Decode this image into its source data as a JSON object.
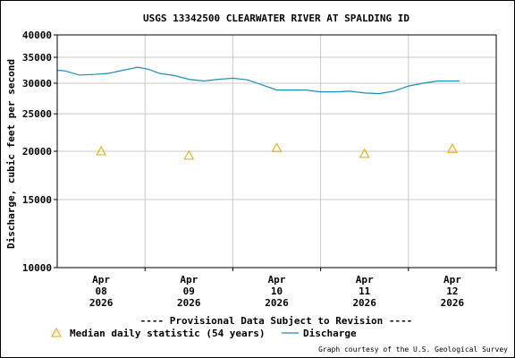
{
  "chart_data": {
    "type": "line",
    "title": "USGS 13342500 CLEARWATER RIVER AT SPALDING ID",
    "ylabel": "Discharge, cubic feet per second",
    "xlabel": "",
    "yscale": "log",
    "ylim": [
      10000,
      40000
    ],
    "y_ticks": [
      10000,
      15000,
      20000,
      25000,
      30000,
      35000,
      40000
    ],
    "y_tick_labels": [
      "10000",
      "15000",
      "20000",
      "25000",
      "30000",
      "35000",
      "40000"
    ],
    "xlim": [
      "2026-04-07 12:00",
      "2026-04-12 12:00"
    ],
    "x_ticks": [
      "2026-04-08",
      "2026-04-09",
      "2026-04-10",
      "2026-04-11",
      "2026-04-12"
    ],
    "x_tick_labels": [
      [
        "Apr",
        "08",
        "2026"
      ],
      [
        "Apr",
        "09",
        "2026"
      ],
      [
        "Apr",
        "10",
        "2026"
      ],
      [
        "Apr",
        "11",
        "2026"
      ],
      [
        "Apr",
        "12",
        "2026"
      ]
    ],
    "grid": true,
    "series": [
      {
        "name": "Discharge",
        "color": "#1a8fb4",
        "marker": "line",
        "x": [
          "2026-04-07 12:00",
          "2026-04-07 14:00",
          "2026-04-07 18:00",
          "2026-04-07 22:00",
          "2026-04-08 02:00",
          "2026-04-08 06:00",
          "2026-04-08 10:00",
          "2026-04-08 13:00",
          "2026-04-08 16:00",
          "2026-04-08 20:00",
          "2026-04-09 00:00",
          "2026-04-09 04:00",
          "2026-04-09 08:00",
          "2026-04-09 12:00",
          "2026-04-09 16:00",
          "2026-04-09 20:00",
          "2026-04-10 00:00",
          "2026-04-10 04:00",
          "2026-04-10 08:00",
          "2026-04-10 12:00",
          "2026-04-10 16:00",
          "2026-04-10 20:00",
          "2026-04-11 00:00",
          "2026-04-11 04:00",
          "2026-04-11 08:00",
          "2026-04-11 12:00",
          "2026-04-11 16:00",
          "2026-04-11 20:00",
          "2026-04-12 00:00",
          "2026-04-12 02:00"
        ],
        "values": [
          32400,
          32300,
          31500,
          31600,
          31800,
          32400,
          33000,
          32600,
          31800,
          31400,
          30700,
          30400,
          30700,
          30900,
          30600,
          29700,
          28800,
          28800,
          28800,
          28500,
          28500,
          28600,
          28300,
          28200,
          28600,
          29500,
          30000,
          30400,
          30400,
          30400
        ]
      },
      {
        "name": "Median daily statistic (54 years)",
        "color": "#e0a800",
        "marker": "triangle",
        "x": [
          "2026-04-08",
          "2026-04-09",
          "2026-04-10",
          "2026-04-11",
          "2026-04-12"
        ],
        "values": [
          20000,
          19500,
          20400,
          19700,
          20300
        ]
      }
    ]
  },
  "provisional_note": "---- Provisional Data Subject to Revision ----",
  "legend": {
    "median_label": "Median daily statistic (54 years)",
    "discharge_label": "Discharge"
  },
  "credit": "Graph courtesy of the U.S. Geological Survey",
  "colors": {
    "provisional": "#dd0000",
    "grid": "#c8c8c8",
    "discharge": "#1a8fb4",
    "median": "#e0a800"
  }
}
